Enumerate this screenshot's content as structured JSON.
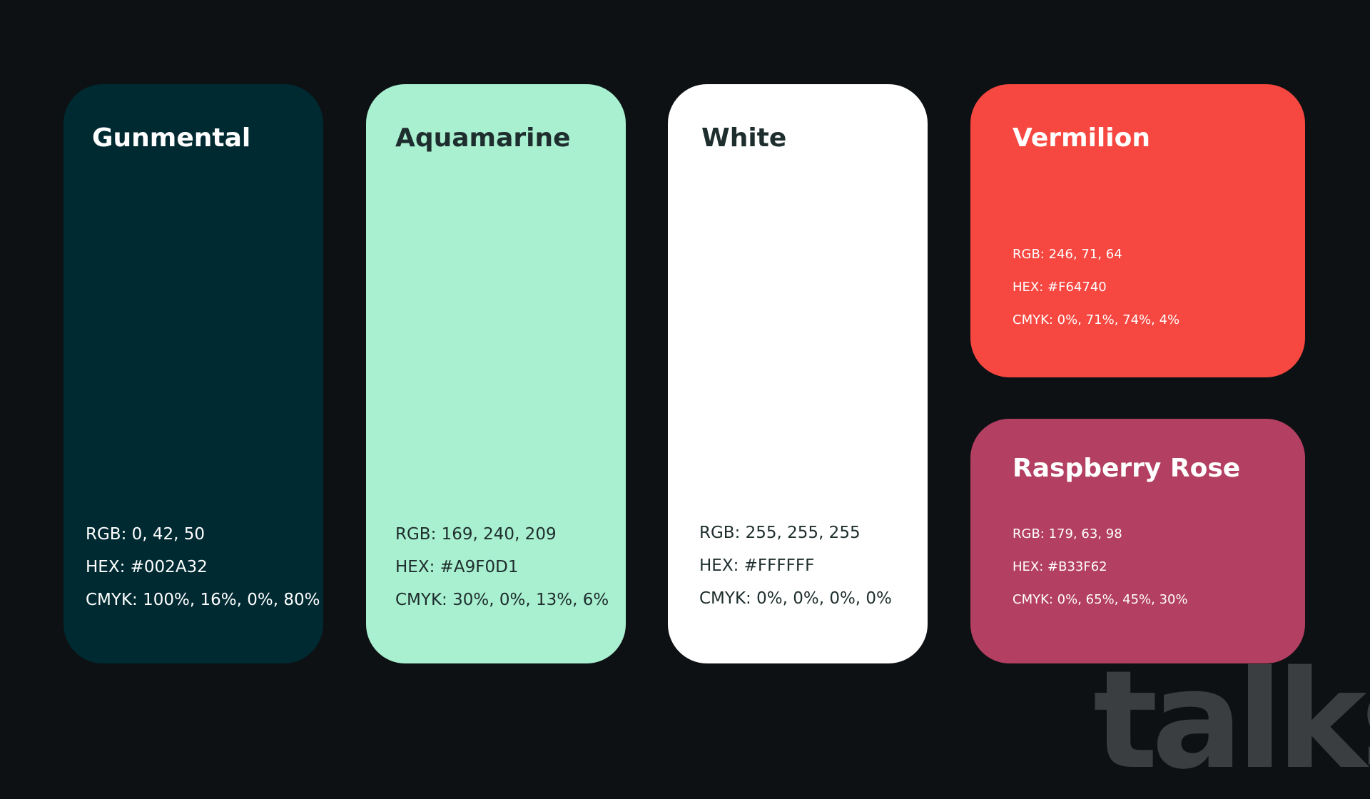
{
  "background_color": "#0D1113",
  "swatches": [
    {
      "name": "Gunmental",
      "color": "#002A32",
      "text_color": "#FFFFFF",
      "rgb": "RGB: 0, 42, 50",
      "hex": "HEX: #002A32",
      "cmyk": "CMYK: 100%, 16%, 0%, 80%"
    },
    {
      "name": "Aquamarine",
      "color": "#A9F0D1",
      "text_color": "#1E2D2D",
      "rgb": "RGB: 169, 240, 209",
      "hex": "HEX: #A9F0D1",
      "cmyk": "CMYK: 30%, 0%, 13%, 6%"
    },
    {
      "name": "White",
      "color": "#FFFFFF",
      "text_color": "#1E2D2D",
      "rgb": "RGB: 255, 255, 255",
      "hex": "HEX: #FFFFFF",
      "cmyk": "CMYK: 0%, 0%, 0%, 0%"
    },
    {
      "name": "Vermilion",
      "color": "#F64740",
      "text_color": "#FFFFFF",
      "rgb": "RGB: 246, 71, 64",
      "hex": "HEX: #F64740",
      "cmyk": "CMYK: 0%, 71%, 74%, 4%"
    },
    {
      "name": "Raspberry Rose",
      "color": "#B33F62",
      "text_color": "#FFFFFF",
      "rgb": "RGB: 179, 63, 98",
      "hex": "HEX: #B33F62",
      "cmyk": "CMYK: 0%, 65%, 45%, 30%"
    }
  ],
  "brand": {
    "wordmark": "talks",
    "color": "#3A3E40"
  }
}
